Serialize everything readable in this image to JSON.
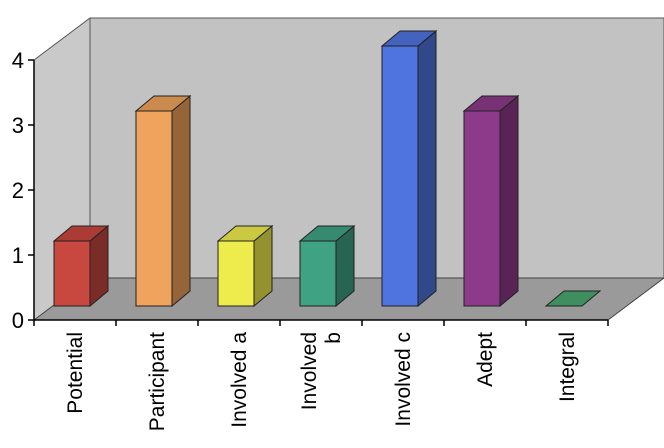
{
  "chart_data": {
    "type": "bar",
    "style": "3d-column",
    "categories": [
      [
        "Potential"
      ],
      [
        "Participant"
      ],
      [
        "Involved a"
      ],
      [
        "Involved",
        "b"
      ],
      [
        "Involved c"
      ],
      [
        "Adept"
      ],
      [
        "Integral"
      ]
    ],
    "values": [
      1,
      3,
      1,
      1,
      4,
      3,
      0
    ],
    "colors": [
      "#c8473e",
      "#f0a35c",
      "#eeec4c",
      "#3fa283",
      "#4f74e0",
      "#8e3a8a",
      "#3e8e5f"
    ],
    "ylim": [
      0,
      4
    ],
    "yticks": [
      "0",
      "1",
      "2",
      "3",
      "4"
    ],
    "grid": false,
    "title": "",
    "xlabel": "",
    "ylabel": ""
  }
}
